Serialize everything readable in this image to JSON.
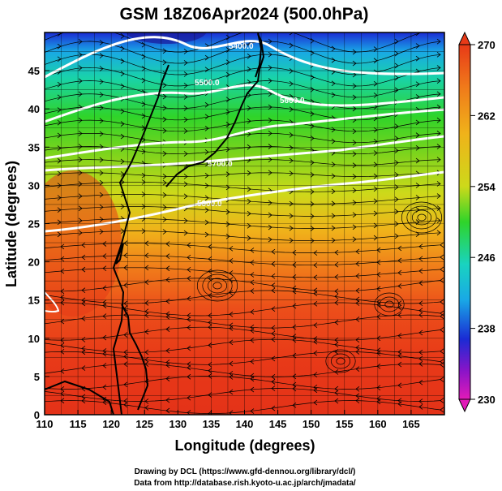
{
  "chart_data": {
    "type": "heatmap",
    "title": "GSM 18Z06Apr2024 (500.0hPa)",
    "xlabel": "Longitude (degrees)",
    "ylabel": "Latitude  (degrees)",
    "xlim": [
      110,
      170
    ],
    "ylim": [
      0,
      50
    ],
    "x_ticks": [
      "110",
      "115",
      "120",
      "125",
      "130",
      "135",
      "140",
      "145",
      "150",
      "155",
      "160",
      "165"
    ],
    "y_ticks": [
      "0",
      "5",
      "10",
      "15",
      "20",
      "25",
      "30",
      "35",
      "40",
      "45"
    ],
    "colorbar": {
      "min": 230,
      "max": 270,
      "tick_labels": [
        "270",
        "262",
        "254",
        "246",
        "238",
        "230"
      ]
    },
    "contour_labels": [
      "5400.0",
      "5500.0",
      "5600.0",
      "5700.0",
      "5800.0"
    ],
    "temperature_profile": [
      {
        "lat": 50,
        "value": 240
      },
      {
        "lat": 45,
        "value": 247
      },
      {
        "lat": 40,
        "value": 252
      },
      {
        "lat": 35,
        "value": 255
      },
      {
        "lat": 30,
        "value": 259
      },
      {
        "lat": 25,
        "value": 263
      },
      {
        "lat": 20,
        "value": 266
      },
      {
        "lat": 15,
        "value": 267
      },
      {
        "lat": 10,
        "value": 268
      },
      {
        "lat": 5,
        "value": 268
      },
      {
        "lat": 0,
        "value": 268
      }
    ],
    "grid": true,
    "wind_field": "streamlines"
  },
  "credits": {
    "line1": "Drawing by DCL (https://www.gfd-dennou.org/library/dcl/)",
    "line2": "Data from http://database.rish.kyoto-u.ac.jp/arch/jmadata/"
  }
}
